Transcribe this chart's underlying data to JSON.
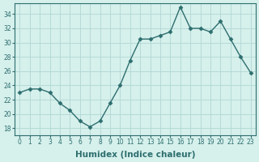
{
  "x": [
    0,
    1,
    2,
    3,
    4,
    5,
    6,
    7,
    8,
    9,
    10,
    11,
    12,
    13,
    14,
    15,
    16,
    17,
    18,
    19,
    20,
    21,
    22,
    23
  ],
  "y": [
    23,
    23.5,
    23.5,
    23,
    21.5,
    20.5,
    19,
    18.2,
    19,
    21.5,
    24,
    27.5,
    30.5,
    30.5,
    31,
    31.5,
    35,
    32,
    32,
    31.5,
    33,
    30.5,
    28,
    25.8
  ],
  "xlabel": "Humidex (Indice chaleur)",
  "ylim": [
    17,
    35.5
  ],
  "yticks": [
    18,
    20,
    22,
    24,
    26,
    28,
    30,
    32,
    34
  ],
  "xticks": [
    0,
    1,
    2,
    3,
    4,
    5,
    6,
    7,
    8,
    9,
    10,
    11,
    12,
    13,
    14,
    15,
    16,
    17,
    18,
    19,
    20,
    21,
    22,
    23
  ],
  "xtick_labels": [
    "0",
    "1",
    "2",
    "3",
    "4",
    "5",
    "6",
    "7",
    "8",
    "9",
    "10",
    "11",
    "12",
    "13",
    "14",
    "15",
    "16",
    "17",
    "18",
    "19",
    "20",
    "21",
    "22",
    "23"
  ],
  "bg_color": "#d6f0ec",
  "line_color": "#2d6e6e",
  "marker": "D",
  "marker_size": 2.5,
  "grid_color": "#b0d8d4",
  "xlabel_fontsize": 7.5,
  "tick_fontsize": 5.5
}
